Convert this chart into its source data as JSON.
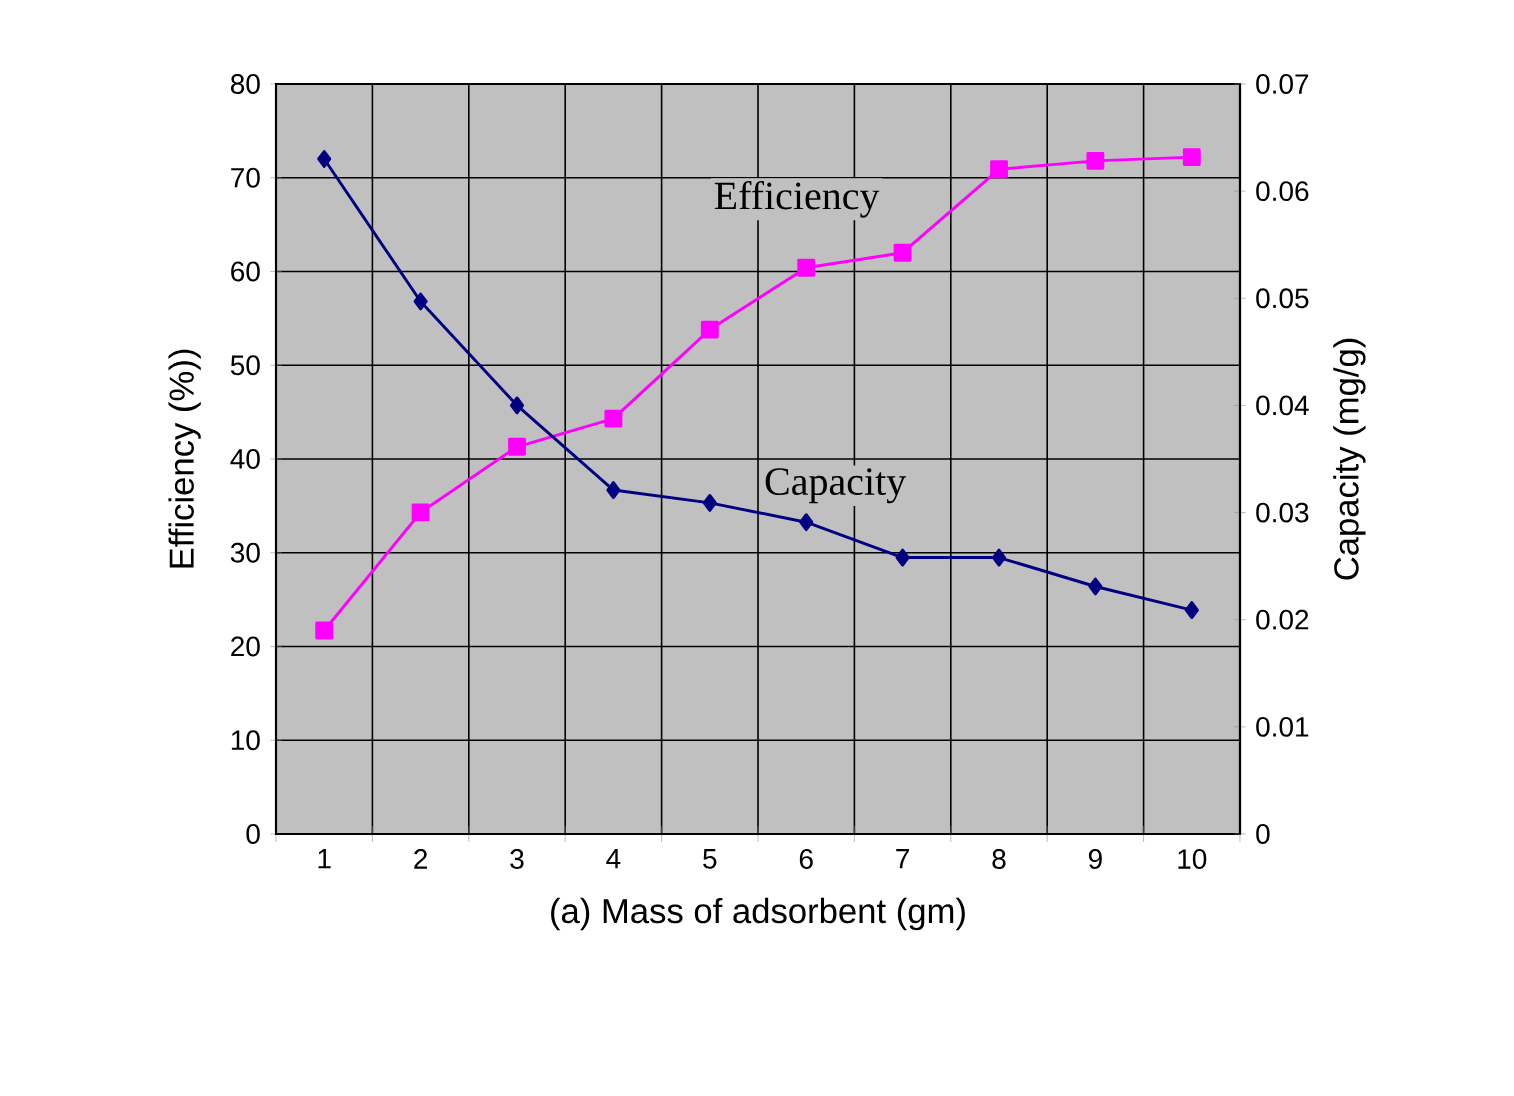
{
  "chart_data": {
    "type": "line",
    "xlabel": "(a) Mass of adsorbent (gm)",
    "ylabel": "Efficiency (%))",
    "y2label": "Capacity (mg/g)",
    "categories": [
      "1",
      "2",
      "3",
      "4",
      "5",
      "6",
      "7",
      "8",
      "9",
      "10"
    ],
    "series": [
      {
        "name": "Efficiency",
        "color": "#ff00ff",
        "marker": "square",
        "values": [
          21.7,
          34.3,
          41.3,
          44.3,
          53.8,
          60.4,
          62.0,
          70.9,
          71.8,
          72.2
        ]
      },
      {
        "name": "Capacity",
        "color": "#000080",
        "marker": "diamond",
        "axis": "y2",
        "values": [
          0.063,
          0.0497,
          0.04,
          0.0321,
          0.0309,
          0.0291,
          0.0258,
          0.0258,
          0.0231,
          0.0209
        ]
      }
    ],
    "ylim": [
      0,
      80
    ],
    "yticks": [
      0,
      10,
      20,
      30,
      40,
      50,
      60,
      70,
      80
    ],
    "y2lim": [
      0,
      0.07
    ],
    "y2ticks": [
      0,
      0.01,
      0.02,
      0.03,
      0.04,
      0.05,
      0.06,
      0.07
    ],
    "grid": true
  }
}
